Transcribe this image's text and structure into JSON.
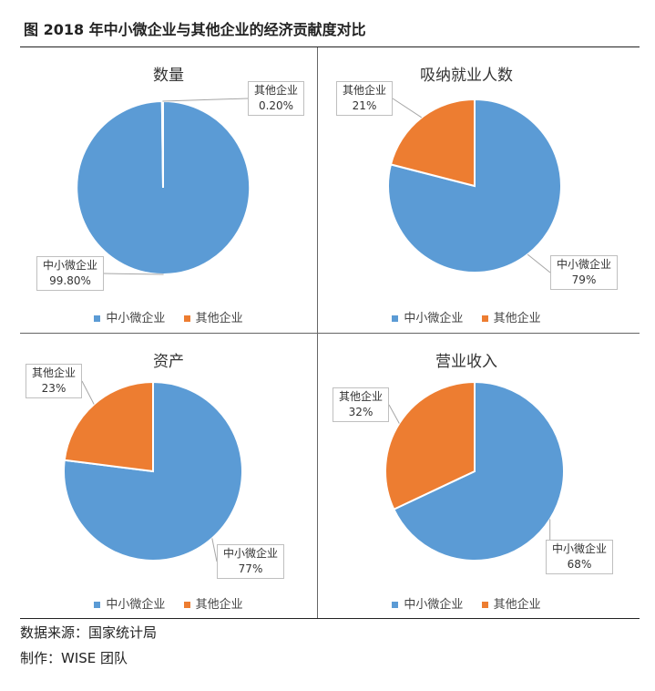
{
  "figure_title": "图  2018 年中小微企业与其他企业的经济贡献度对比",
  "colors": {
    "sme": "#5B9BD5",
    "other": "#ED7D31",
    "leader": "#a6a6a6"
  },
  "legend": [
    "中小微企业",
    "其他企业"
  ],
  "chart_data": [
    {
      "type": "pie",
      "title": "数量",
      "labels": [
        "中小微企业",
        "其他企业"
      ],
      "values": [
        99.8,
        0.2
      ],
      "display": [
        "99.80%",
        "0.20%"
      ]
    },
    {
      "type": "pie",
      "title": "吸纳就业人数",
      "labels": [
        "中小微企业",
        "其他企业"
      ],
      "values": [
        79,
        21
      ],
      "display": [
        "79%",
        "21%"
      ]
    },
    {
      "type": "pie",
      "title": "资产",
      "labels": [
        "中小微企业",
        "其他企业"
      ],
      "values": [
        77,
        23
      ],
      "display": [
        "77%",
        "23%"
      ]
    },
    {
      "type": "pie",
      "title": "营业收入",
      "labels": [
        "中小微企业",
        "其他企业"
      ],
      "values": [
        68,
        32
      ],
      "display": [
        "68%",
        "32%"
      ]
    }
  ],
  "footer": {
    "source": "数据来源：国家统计局",
    "author": "制作：WISE 团队"
  }
}
